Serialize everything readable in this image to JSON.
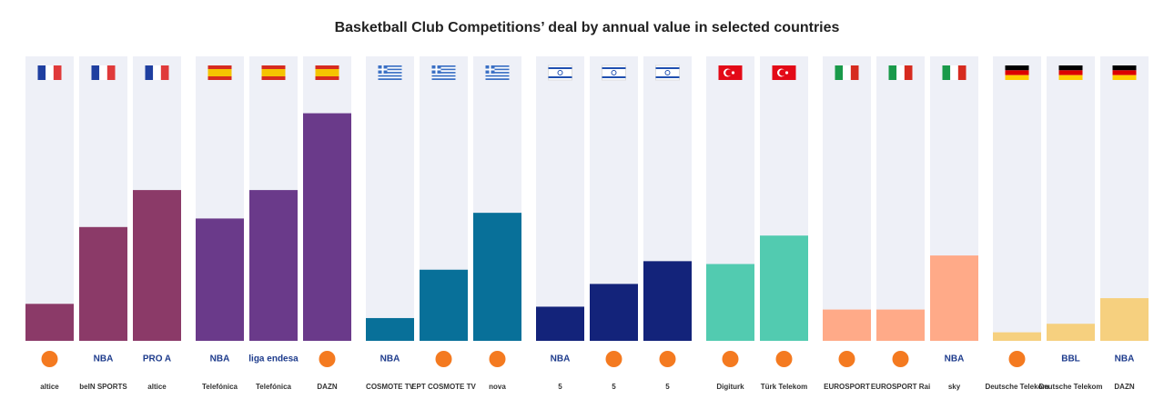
{
  "chart_data": {
    "type": "bar",
    "title": "Basketball Club Competitions’ deal by annual value in selected countries",
    "ylim": [
      0,
      100
    ],
    "track_color": "#eef0f7",
    "groups": [
      {
        "color": "#8b3a68",
        "competitions": [
          null,
          "NBA",
          "PRO A"
        ],
        "broadcasters": [
          "altice",
          "beIN SPORTS",
          "altice"
        ],
        "values": [
          13,
          40,
          53
        ]
      },
      {
        "color": "#6a3a8a",
        "competitions": [
          "NBA",
          "liga endesa",
          null
        ],
        "broadcasters": [
          "Telefónica",
          "Telefónica",
          "DAZN"
        ],
        "values": [
          43,
          53,
          80
        ]
      },
      {
        "color": "#087099",
        "competitions": [
          "NBA",
          null,
          null
        ],
        "broadcasters": [
          "COSMOTE TV",
          "EPT COSMOTE TV",
          "nova"
        ],
        "values": [
          8,
          25,
          45
        ]
      },
      {
        "color": "#13237a",
        "competitions": [
          "NBA",
          null,
          null
        ],
        "broadcasters": [
          "5",
          "5",
          "5"
        ],
        "values": [
          12,
          20,
          28
        ]
      },
      {
        "color": "#52cbb0",
        "competitions": [
          null,
          null
        ],
        "broadcasters": [
          "Digiturk",
          "Türk Telekom"
        ],
        "values": [
          27,
          37
        ]
      },
      {
        "color": "#ffaa88",
        "competitions": [
          null,
          null,
          "NBA"
        ],
        "broadcasters": [
          "EUROSPORT",
          "EUROSPORT Rai",
          "sky"
        ],
        "values": [
          11,
          11,
          30
        ]
      },
      {
        "color": "#f6d07f",
        "competitions": [
          null,
          "BBL",
          "NBA"
        ],
        "broadcasters": [
          "Deutsche Telekom",
          "Deutsche Telekom",
          "DAZN"
        ],
        "values": [
          3,
          6,
          15
        ]
      }
    ]
  }
}
